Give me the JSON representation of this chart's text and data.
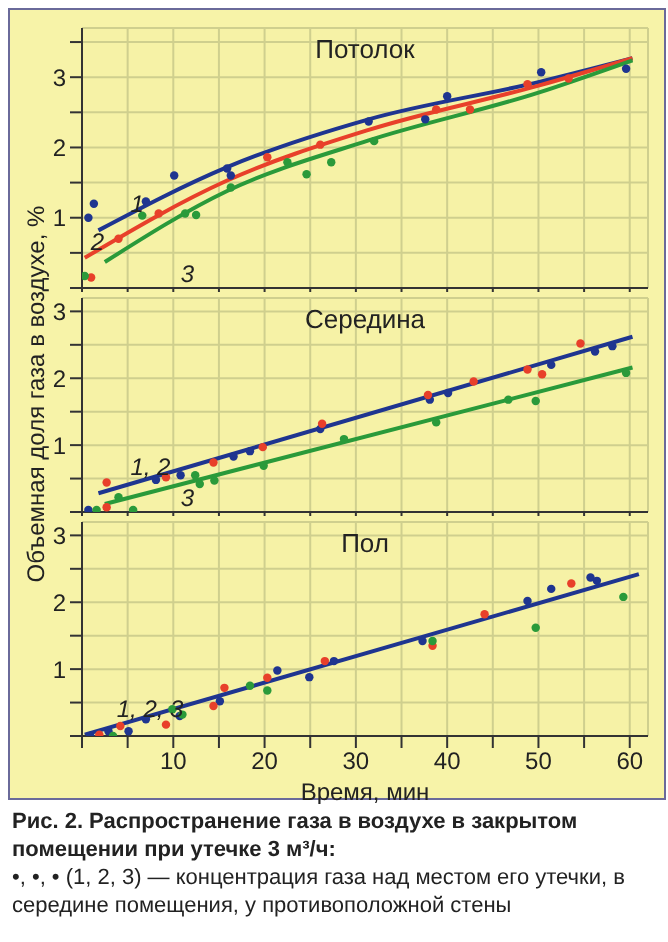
{
  "chart_data": [
    {
      "type": "line",
      "title": "Потолок",
      "xlim": [
        0,
        62
      ],
      "ylim": [
        0,
        3.7
      ],
      "tick_labels": "y",
      "grid": true,
      "legend": false,
      "xticks": [
        {
          "value": 0,
          "label": null
        },
        {
          "value": 5,
          "label": null
        },
        10,
        {
          "value": 15,
          "label": null
        },
        20,
        {
          "value": 25,
          "label": null
        },
        30,
        {
          "value": 35,
          "label": null
        },
        40,
        {
          "value": 45,
          "label": null
        },
        50,
        {
          "value": 55,
          "label": null
        },
        60
      ],
      "yticks": [
        {
          "value": 0,
          "label": null
        },
        {
          "value": 0.5,
          "label": null
        },
        1,
        {
          "value": 1.5,
          "label": null
        },
        2,
        {
          "value": 2.5,
          "label": null
        },
        3,
        {
          "value": 3.5,
          "label": null
        }
      ],
      "series": [
        {
          "type": "line",
          "marker": "none",
          "color": "#1f3590",
          "x": [
            1.8,
            15.9,
            31.4,
            50,
            60.3
          ],
          "values": [
            0.82,
            1.72,
            2.4,
            2.93,
            3.27
          ]
        },
        {
          "type": "line",
          "marker": "none",
          "color": "#e8402a",
          "x": [
            0.3,
            15.9,
            31.4,
            50,
            60.3
          ],
          "values": [
            0.43,
            1.53,
            2.25,
            2.88,
            3.27
          ]
        },
        {
          "type": "line",
          "marker": "none",
          "color": "#2a9a3a",
          "x": [
            2.5,
            15.9,
            31.4,
            50,
            60.3
          ],
          "values": [
            0.37,
            1.38,
            2.1,
            2.78,
            3.24
          ]
        },
        {
          "type": "scatter",
          "marker": "circle",
          "color": "#1f3590",
          "x": [
            0.7,
            1.3,
            7,
            10.1,
            15.9,
            16.3,
            31.4,
            37.6,
            40,
            50.3,
            59.6
          ],
          "values": [
            1.0,
            1.2,
            1.23,
            1.6,
            1.7,
            1.6,
            2.37,
            2.4,
            2.73,
            3.07,
            3.12
          ]
        },
        {
          "type": "scatter",
          "marker": "circle",
          "color": "#e8402a",
          "x": [
            1,
            4,
            8.4,
            20.3,
            26.1,
            38.8,
            42.5,
            48.8,
            53.3
          ],
          "values": [
            0.15,
            0.7,
            1.06,
            1.86,
            2.04,
            2.54,
            2.54,
            2.9,
            2.98
          ]
        },
        {
          "type": "scatter",
          "marker": "circle",
          "color": "#2a9a3a",
          "x": [
            0.3,
            6.6,
            11.3,
            12.5,
            16.3,
            22.5,
            24.6,
            27.3,
            32
          ],
          "values": [
            0.17,
            1.03,
            1.06,
            1.04,
            1.43,
            1.79,
            1.62,
            1.79,
            2.09
          ]
        }
      ],
      "annotations": [
        "1",
        "2",
        "3"
      ]
    },
    {
      "type": "line",
      "title": "Середина",
      "ylabel": "Объемная доля газа в воздухе, %",
      "xlim": [
        0,
        62
      ],
      "ylim": [
        0,
        3.2
      ],
      "tick_labels": "y",
      "grid": true,
      "legend": false,
      "xticks": [
        {
          "value": 0,
          "label": null
        },
        {
          "value": 5,
          "label": null
        },
        10,
        {
          "value": 15,
          "label": null
        },
        20,
        {
          "value": 25,
          "label": null
        },
        30,
        {
          "value": 35,
          "label": null
        },
        40,
        {
          "value": 45,
          "label": null
        },
        50,
        {
          "value": 55,
          "label": null
        },
        60
      ],
      "yticks": [
        {
          "value": 0,
          "label": null
        },
        {
          "value": 0.5,
          "label": null
        },
        1,
        {
          "value": 1.5,
          "label": null
        },
        2,
        {
          "value": 2.5,
          "label": null
        },
        3
      ],
      "series": [
        {
          "type": "line",
          "marker": "none",
          "color": "#1f3590",
          "x": [
            1.8,
            60.3
          ],
          "values": [
            0.28,
            2.62
          ]
        },
        {
          "type": "line",
          "marker": "none",
          "color": "#2a9a3a",
          "x": [
            2.5,
            60.3
          ],
          "values": [
            0.12,
            2.16
          ]
        },
        {
          "type": "scatter",
          "marker": "circle",
          "color": "#1f3590",
          "x": [
            0.7,
            8.1,
            10.8,
            16.6,
            18.4,
            26.1,
            38.1,
            40.1,
            51.4,
            56.2,
            58.1
          ],
          "values": [
            0.03,
            0.48,
            0.55,
            0.83,
            0.91,
            1.24,
            1.68,
            1.78,
            2.2,
            2.4,
            2.48
          ]
        },
        {
          "type": "scatter",
          "marker": "circle",
          "color": "#e8402a",
          "x": [
            2.7,
            2.7,
            9.2,
            14.4,
            19.8,
            26.3,
            37.9,
            42.9,
            48.8,
            50.4,
            54.6
          ],
          "values": [
            0.44,
            0.07,
            0.52,
            0.74,
            0.97,
            1.32,
            1.75,
            1.95,
            2.13,
            2.06,
            2.52
          ]
        },
        {
          "type": "scatter",
          "marker": "circle",
          "color": "#2a9a3a",
          "x": [
            1.6,
            4,
            5.6,
            12.4,
            12.9,
            14.5,
            19.9,
            28.7,
            38.8,
            46.7,
            49.7,
            59.6
          ],
          "values": [
            0.03,
            0.22,
            0.03,
            0.55,
            0.42,
            0.47,
            0.69,
            1.09,
            1.34,
            1.68,
            1.66,
            2.08
          ]
        }
      ],
      "annotations": [
        "1, 2",
        "3"
      ]
    },
    {
      "type": "line",
      "title": "Пол",
      "xlabel": "Время, мин",
      "xlim": [
        0,
        62
      ],
      "ylim": [
        0,
        3.2
      ],
      "grid": true,
      "legend": false,
      "xticks": [
        {
          "value": 0,
          "label": null
        },
        {
          "value": 5,
          "label": null
        },
        10,
        {
          "value": 15,
          "label": null
        },
        20,
        {
          "value": 25,
          "label": null
        },
        30,
        {
          "value": 35,
          "label": null
        },
        40,
        {
          "value": 45,
          "label": null
        },
        50,
        {
          "value": 55,
          "label": null
        },
        60
      ],
      "yticks": [
        {
          "value": 0,
          "label": null
        },
        {
          "value": 0.5,
          "label": null
        },
        1,
        {
          "value": 1.5,
          "label": null
        },
        2,
        {
          "value": 2.5,
          "label": null
        },
        3
      ],
      "series": [
        {
          "type": "line",
          "marker": "none",
          "color": "#1f3590",
          "x": [
            0.3,
            61
          ],
          "values": [
            0.02,
            2.42
          ]
        },
        {
          "type": "scatter",
          "marker": "circle",
          "color": "#1f3590",
          "x": [
            0.9,
            2.9,
            5.1,
            7,
            10.7,
            15.1,
            21.4,
            24.9,
            27.6,
            37.3,
            48.8,
            51.4,
            55.7,
            56.4
          ],
          "values": [
            0,
            0.07,
            0.07,
            0.25,
            0.3,
            0.52,
            0.98,
            0.88,
            1.12,
            1.42,
            2.02,
            2.2,
            2.37,
            2.32
          ]
        },
        {
          "type": "scatter",
          "marker": "circle",
          "color": "#e8402a",
          "x": [
            1.9,
            4.2,
            9.2,
            14.4,
            15.6,
            20.3,
            26.6,
            38.4,
            44.1,
            53.6
          ],
          "values": [
            0.02,
            0.15,
            0.17,
            0.45,
            0.72,
            0.87,
            1.12,
            1.35,
            1.82,
            2.28
          ]
        },
        {
          "type": "scatter",
          "marker": "circle",
          "color": "#2a9a3a",
          "x": [
            3.4,
            9.9,
            11,
            18.4,
            20.3,
            38.4,
            49.7,
            59.3
          ],
          "values": [
            0,
            0.4,
            0.32,
            0.75,
            0.68,
            1.42,
            1.62,
            2.08
          ]
        }
      ],
      "annotations": [
        "1, 2, 3",
        "Рис. 2. Распространение газа в воздухе в закрытом помещении при утечке 3 м³/ч:",
        "•, •, • (1, 2, 3) — концентрация газа над местом его утечки, в середине помещения, у противоположной стены"
      ]
    }
  ]
}
